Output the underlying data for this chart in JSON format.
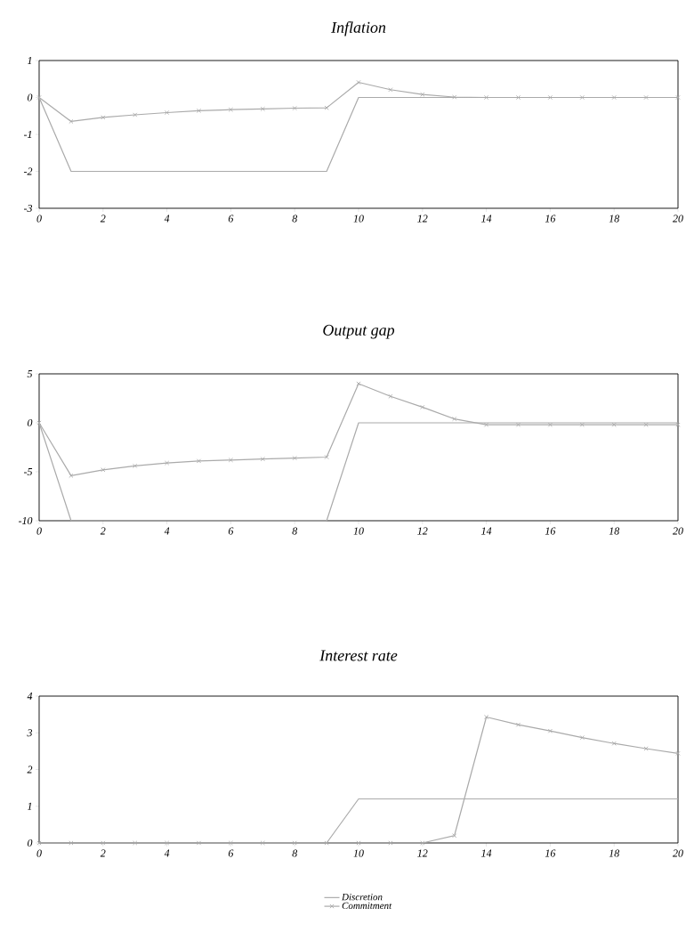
{
  "chart_data": [
    {
      "type": "line",
      "title": "Inflation",
      "x": [
        0,
        1,
        2,
        3,
        4,
        5,
        6,
        7,
        8,
        9,
        10,
        11,
        12,
        13,
        14,
        15,
        16,
        17,
        18,
        19,
        20
      ],
      "xlim": [
        0,
        20
      ],
      "xticks": [
        0,
        2,
        4,
        6,
        8,
        10,
        12,
        14,
        16,
        18,
        20
      ],
      "ylim": [
        -3,
        1
      ],
      "yticks": [
        -3,
        -2,
        -1,
        0,
        1
      ],
      "series": [
        {
          "color": "#aaaaaa",
          "marker": "none",
          "line_style": "solid",
          "values": [
            0,
            -2,
            -2,
            -2,
            -2,
            -2,
            -2,
            -2,
            -2,
            -2,
            0,
            0,
            0,
            0,
            0,
            0,
            0,
            0,
            0,
            0,
            0
          ]
        },
        {
          "color": "#aaaaaa",
          "marker": "cross",
          "line_style": "solid",
          "values": [
            0,
            -0.65,
            -0.54,
            -0.47,
            -0.41,
            -0.36,
            -0.33,
            -0.31,
            -0.29,
            -0.28,
            0.41,
            0.21,
            0.08,
            0.01,
            0,
            0,
            0,
            0,
            0,
            0,
            0
          ]
        }
      ]
    },
    {
      "type": "line",
      "title": "Output gap",
      "x": [
        0,
        1,
        2,
        3,
        4,
        5,
        6,
        7,
        8,
        9,
        10,
        11,
        12,
        13,
        14,
        15,
        16,
        17,
        18,
        19,
        20
      ],
      "xlim": [
        0,
        20
      ],
      "xticks": [
        0,
        2,
        4,
        6,
        8,
        10,
        12,
        14,
        16,
        18,
        20
      ],
      "ylim": [
        -10,
        5
      ],
      "yticks": [
        -10,
        -5,
        0,
        5
      ],
      "series": [
        {
          "color": "#aaaaaa",
          "marker": "none",
          "line_style": "solid",
          "values": [
            0,
            -10,
            -10,
            -10,
            -10,
            -10,
            -10,
            -10,
            -10,
            -10,
            0,
            0,
            0,
            0,
            0,
            0,
            0,
            0,
            0,
            0,
            0
          ]
        },
        {
          "color": "#aaaaaa",
          "marker": "cross",
          "line_style": "solid",
          "values": [
            0,
            -5.4,
            -4.8,
            -4.4,
            -4.1,
            -3.9,
            -3.8,
            -3.7,
            -3.6,
            -3.5,
            4.0,
            2.7,
            1.6,
            0.4,
            -0.2,
            -0.2,
            -0.2,
            -0.2,
            -0.2,
            -0.2,
            -0.2
          ]
        }
      ]
    },
    {
      "type": "line",
      "title": "Interest rate",
      "x": [
        0,
        1,
        2,
        3,
        4,
        5,
        6,
        7,
        8,
        9,
        10,
        11,
        12,
        13,
        14,
        15,
        16,
        17,
        18,
        19,
        20
      ],
      "xlim": [
        0,
        20
      ],
      "xticks": [
        0,
        2,
        4,
        6,
        8,
        10,
        12,
        14,
        16,
        18,
        20
      ],
      "ylim": [
        0,
        4
      ],
      "yticks": [
        0,
        1,
        2,
        3,
        4
      ],
      "legend": "bottom",
      "series": [
        {
          "name": "Discretion",
          "color": "#aaaaaa",
          "marker": "none",
          "line_style": "solid",
          "values": [
            0,
            0,
            0,
            0,
            0,
            0,
            0,
            0,
            0,
            0,
            1.2,
            1.2,
            1.2,
            1.2,
            1.2,
            1.2,
            1.2,
            1.2,
            1.2,
            1.2,
            1.2
          ]
        },
        {
          "name": "Commitment",
          "color": "#aaaaaa",
          "marker": "cross",
          "line_style": "solid",
          "values": [
            0,
            0,
            0,
            0,
            0,
            0,
            0,
            0,
            0,
            0,
            0,
            0,
            0,
            0.2,
            3.43,
            3.22,
            3.05,
            2.87,
            2.71,
            2.57,
            2.44
          ]
        }
      ]
    }
  ]
}
